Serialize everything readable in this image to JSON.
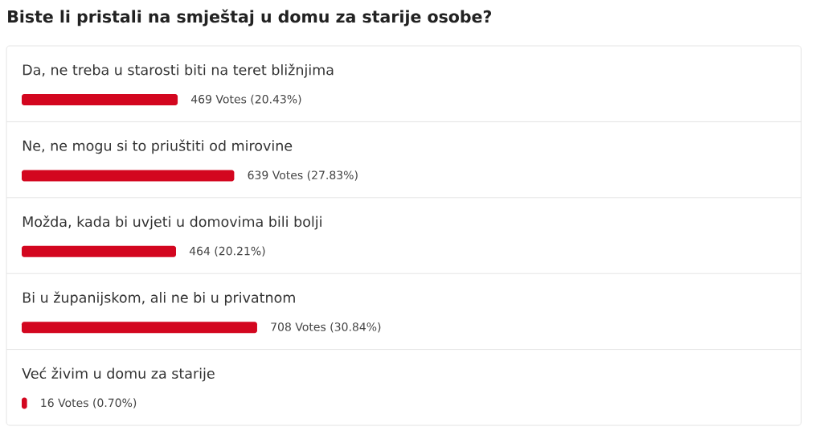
{
  "chart_data": {
    "type": "bar",
    "orientation": "horizontal",
    "title": "Biste li pristali na smještaj u domu za starije osobe?",
    "categories": [
      "Da, ne treba u starosti biti na teret bližnjima",
      "Ne, ne mogu si to priuštiti od mirovine",
      "Možda, kada bi uvjeti u domovima bili bolji",
      "Bi u županijskom, ali ne bi u privatnom",
      "Već živim u domu za starije"
    ],
    "values": [
      469,
      639,
      464,
      708,
      16
    ],
    "value_labels": [
      "469 Votes (20.43%)",
      "639 Votes (27.83%)",
      "464 (20.21%)",
      "708 Votes (30.84%)",
      "16 Votes (0.70%)"
    ],
    "color": "#d3061f"
  }
}
